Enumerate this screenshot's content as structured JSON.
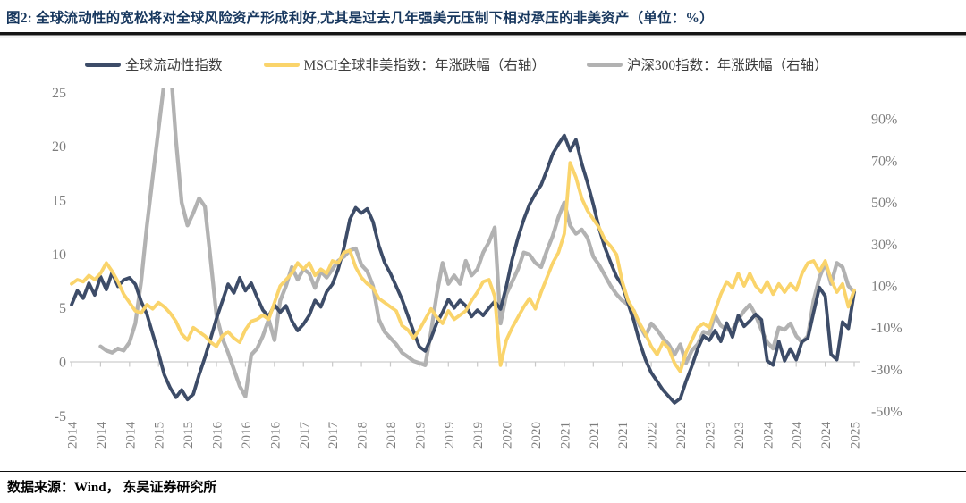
{
  "header": {
    "title": "图2:  全球流动性的宽松将对全球风险资产形成利好,尤其是过去几年强美元压制下相对承压的非美资产（单位：%）"
  },
  "footer": {
    "source": "数据来源：Wind， 东吴证券研究所"
  },
  "chart_data": {
    "type": "line",
    "title": "全球流动性的宽松将对全球风险资产形成利好,尤其是过去几年强美元压制下相对承压的非美资产（单位：%）",
    "x_start_month": "2014-01",
    "x_end_month": "2025-04",
    "x_tick_step_months": 5,
    "x_tick_labels": [
      "2014",
      "2014",
      "2014",
      "2015",
      "2015",
      "2016",
      "2016",
      "2016",
      "2017",
      "2017",
      "2018",
      "2018",
      "2019",
      "2019",
      "2019",
      "2020",
      "2020",
      "2021",
      "2021",
      "2021",
      "2022",
      "2022",
      "2023",
      "2023",
      "2024",
      "2024",
      "2024",
      "2025"
    ],
    "grid": "zero-line-only",
    "legend_position": "top",
    "left_axis": {
      "ticks": [
        25,
        20,
        15,
        10,
        5,
        0,
        -5
      ],
      "min": -5,
      "max": 25
    },
    "right_axis": {
      "ticks": [
        "90%",
        "70%",
        "50%",
        "30%",
        "10%",
        "-10%",
        "-30%",
        "-50%"
      ],
      "values": [
        90,
        70,
        50,
        30,
        10,
        -10,
        -30,
        -50
      ],
      "min": -50,
      "max": 90
    },
    "series": [
      {
        "id": "global-liquidity-index",
        "name": "全球流动性指数",
        "axis": "left",
        "color": "#3D4C68",
        "values": [
          5.3,
          6.6,
          5.9,
          7.3,
          6.2,
          7.9,
          6.7,
          8.3,
          7.0,
          7.6,
          7.8,
          7.2,
          5.6,
          4.4,
          2.6,
          0.8,
          -1.2,
          -2.4,
          -3.3,
          -2.6,
          -3.5,
          -3.0,
          -1.2,
          0.4,
          2.2,
          4.0,
          5.6,
          7.2,
          6.4,
          7.8,
          6.6,
          7.3,
          6.0,
          4.8,
          4.2,
          5.3,
          4.6,
          5.2,
          3.8,
          2.9,
          3.5,
          4.3,
          5.7,
          5.1,
          6.5,
          7.2,
          8.6,
          10.6,
          13.2,
          14.3,
          13.8,
          14.2,
          13.0,
          10.8,
          9.2,
          8.2,
          7.0,
          5.8,
          4.3,
          2.8,
          1.4,
          1.0,
          2.2,
          3.6,
          4.6,
          5.8,
          5.0,
          5.7,
          5.2,
          4.2,
          4.8,
          4.3,
          5.0,
          5.6,
          4.9,
          7.0,
          9.5,
          11.5,
          13.2,
          14.6,
          15.6,
          16.4,
          17.8,
          19.3,
          20.2,
          21.0,
          19.6,
          20.6,
          18.4,
          16.6,
          14.6,
          12.4,
          10.6,
          9.2,
          7.9,
          7.1,
          5.4,
          3.8,
          1.8,
          0.2,
          -1.0,
          -1.8,
          -2.6,
          -3.2,
          -3.8,
          -3.4,
          -1.8,
          -0.4,
          1.2,
          2.4,
          2.0,
          2.9,
          1.9,
          3.6,
          2.3,
          4.3,
          3.3,
          3.8,
          4.4,
          3.9,
          0.1,
          -0.3,
          1.9,
          0.1,
          1.2,
          0.2,
          1.9,
          2.2,
          4.6,
          6.9,
          6.1,
          0.7,
          0.2,
          3.7,
          3.1,
          6.5
        ]
      },
      {
        "id": "msci-acwi-ex-us",
        "name": "MSCI全球非美指数：年涨跌幅（右轴）",
        "axis": "right",
        "color": "#FAD46B",
        "values": [
          11,
          13,
          12,
          15,
          13,
          16,
          21,
          17,
          12,
          6,
          2,
          -2,
          -3,
          1,
          -1,
          2,
          0,
          -3,
          -7,
          -13,
          -16,
          -10,
          -12,
          -14,
          -17,
          -19,
          -14,
          -12,
          -15,
          -17,
          -11,
          -7,
          -6,
          -4,
          -6,
          2,
          10,
          13,
          16,
          21,
          18,
          21,
          15,
          18,
          16,
          22,
          21,
          26,
          27,
          19,
          14,
          11,
          9,
          4,
          2,
          0,
          -2,
          -9,
          -11,
          -15,
          -11,
          -6,
          -1,
          -5,
          -8,
          -2,
          -6,
          -4,
          -2,
          3,
          7,
          12,
          13,
          5,
          -28,
          -16,
          -10,
          -5,
          0,
          4,
          -1,
          7,
          14,
          21,
          26,
          35,
          69,
          62,
          52,
          46,
          42,
          38,
          32,
          29,
          25,
          12,
          3,
          -2,
          -8,
          -13,
          -19,
          -23,
          -17,
          -20,
          -27,
          -31,
          -22,
          -16,
          -10,
          -8,
          -10,
          -2,
          6,
          12,
          9,
          16,
          10,
          16,
          10,
          7,
          12,
          6,
          11,
          7,
          11,
          8,
          16,
          21,
          22,
          17,
          22,
          13,
          7,
          11,
          0,
          8
        ]
      },
      {
        "id": "csi300-index",
        "name": "沪深300指数：年涨跌幅（右轴）",
        "axis": "right",
        "color": "#B2B2B2",
        "values": [
          null,
          null,
          null,
          null,
          null,
          -19,
          -21,
          -22,
          -20,
          -21,
          -17,
          -8,
          12,
          39,
          62,
          85,
          108,
          118,
          80,
          50,
          39,
          45,
          52,
          48,
          22,
          -4,
          -15,
          -22,
          -30,
          -38,
          -43,
          -23,
          -20,
          -14,
          -6,
          -16,
          3,
          10,
          19,
          13,
          18,
          16,
          9,
          17,
          14,
          18,
          22,
          24,
          27,
          28,
          20,
          17,
          10,
          -6,
          -12,
          -15,
          -18,
          -22,
          -24,
          -26,
          -27,
          -28,
          -12,
          6,
          21,
          11,
          15,
          11,
          22,
          15,
          18,
          26,
          31,
          38,
          -8,
          6,
          12,
          18,
          26,
          25,
          21,
          19,
          27,
          34,
          43,
          50,
          39,
          35,
          37,
          33,
          24,
          20,
          15,
          10,
          6,
          3,
          1,
          -2,
          -9,
          -14,
          -8,
          -11,
          -15,
          -18,
          -23,
          -18,
          -27,
          -21,
          -18,
          -12,
          -13,
          -4,
          -9,
          -11,
          -11,
          -6,
          -2,
          1,
          -4,
          -11,
          -17,
          -20,
          -10,
          -11,
          -8,
          -14,
          -17,
          -14,
          3,
          14,
          21,
          11,
          21,
          19,
          10,
          7
        ]
      }
    ]
  }
}
